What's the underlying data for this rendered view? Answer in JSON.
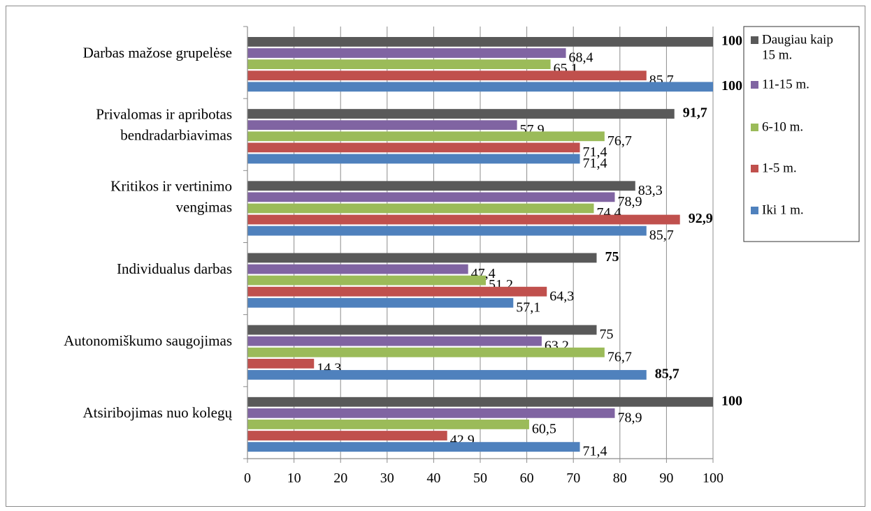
{
  "chart_data": {
    "type": "bar",
    "orientation": "horizontal",
    "title": "",
    "xlabel": "",
    "ylabel": "",
    "xlim": [
      0,
      100
    ],
    "xticks": [
      0,
      10,
      20,
      30,
      40,
      50,
      60,
      70,
      80,
      90,
      100
    ],
    "grid": "vertical",
    "legend_position": "right",
    "categories": [
      {
        "lines": [
          "Darbas mažose grupelėse"
        ]
      },
      {
        "lines": [
          "Privalomas ir apribotas",
          "bendradarbiavimas"
        ]
      },
      {
        "lines": [
          "Kritikos ir vertinimo",
          "vengimas"
        ]
      },
      {
        "lines": [
          "Individualus darbas"
        ]
      },
      {
        "lines": [
          "Autonomiškumo saugojimas"
        ]
      },
      {
        "lines": [
          "Atsiribojimas nuo kolegų"
        ]
      }
    ],
    "series": [
      {
        "name": "Daugiau kaip 15 m.",
        "legend_lines": [
          "Daugiau kaip",
          "15 m."
        ],
        "color": "#595959",
        "values": [
          100,
          91.7,
          83.3,
          75,
          75,
          100
        ],
        "labels": [
          "100",
          "91,7",
          "83,3",
          "75",
          "75",
          "100"
        ],
        "bold": [
          true,
          true,
          false,
          true,
          false,
          true
        ]
      },
      {
        "name": "11-15 m.",
        "legend_lines": [
          "11-15 m."
        ],
        "color": "#8064a2",
        "values": [
          68.4,
          57.9,
          78.9,
          47.4,
          63.2,
          78.9
        ],
        "labels": [
          "68,4",
          "57,9",
          "78,9",
          "47,4",
          "63,2",
          "78,9"
        ],
        "bold": [
          false,
          false,
          false,
          false,
          false,
          false
        ]
      },
      {
        "name": "6-10 m.",
        "legend_lines": [
          "6-10 m."
        ],
        "color": "#9bbb59",
        "values": [
          65.1,
          76.7,
          74.4,
          51.2,
          76.7,
          60.5
        ],
        "labels": [
          "65,1",
          "76,7",
          "74,4",
          "51,2",
          "76,7",
          "60,5"
        ],
        "bold": [
          false,
          false,
          false,
          false,
          false,
          false
        ]
      },
      {
        "name": "1-5 m.",
        "legend_lines": [
          "1-5 m."
        ],
        "color": "#c0504d",
        "values": [
          85.7,
          71.4,
          92.9,
          64.3,
          14.3,
          42.9
        ],
        "labels": [
          "85,7",
          "71,4",
          "92,9",
          "64,3",
          "14,3",
          "42,9"
        ],
        "bold": [
          false,
          false,
          true,
          false,
          false,
          false
        ]
      },
      {
        "name": "Iki 1 m.",
        "legend_lines": [
          "Iki 1 m."
        ],
        "color": "#4f81bd",
        "values": [
          100,
          71.4,
          85.7,
          57.1,
          85.7,
          71.4
        ],
        "labels": [
          "100",
          "71,4",
          "85,7",
          "57,1",
          "85,7",
          "71,4"
        ],
        "bold": [
          true,
          false,
          false,
          false,
          true,
          false
        ]
      }
    ]
  }
}
